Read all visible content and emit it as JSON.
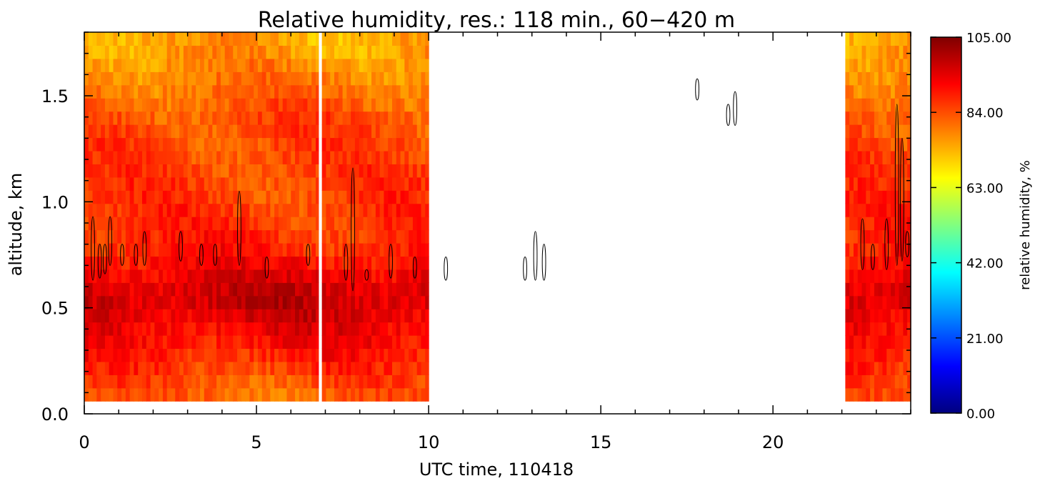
{
  "chart_data": {
    "type": "heatmap",
    "title": "Relative humidity, res.: 118 min.,  60−420 m",
    "xlabel": "UTC time, 110418",
    "ylabel": "altitude, km",
    "xlim": [
      0,
      24
    ],
    "ylim": [
      0.0,
      1.8
    ],
    "x_ticks": [
      0,
      5,
      10,
      15,
      20
    ],
    "x_tick_labels": [
      "0",
      "5",
      "10",
      "15",
      "20"
    ],
    "y_ticks": [
      0.0,
      0.5,
      1.0,
      1.5
    ],
    "y_tick_labels": [
      "0.0",
      "0.5",
      "1.0",
      "1.5"
    ],
    "grid": false,
    "data_altitude_range": [
      0.06,
      1.8
    ],
    "data_segments": [
      {
        "x_start": 0,
        "x_end": 6.8
      },
      {
        "x_start": 6.9,
        "x_end": 10.0
      },
      {
        "x_start": 22.1,
        "x_end": 24.0
      }
    ],
    "typical_values": [
      {
        "altitude_km": 1.75,
        "rh_percent": 75
      },
      {
        "altitude_km": 1.4,
        "rh_percent": 84
      },
      {
        "altitude_km": 1.0,
        "rh_percent": 86
      },
      {
        "altitude_km": 0.8,
        "rh_percent": 88
      },
      {
        "altitude_km": 0.55,
        "rh_percent": 98
      },
      {
        "altitude_km": 0.3,
        "rh_percent": 90
      },
      {
        "altitude_km": 0.1,
        "rh_percent": 82
      }
    ],
    "contour_level_approx_percent": 100,
    "colorbar": {
      "label": "relative humidity, %",
      "range": [
        0.0,
        105.0
      ],
      "tick_values": [
        0.0,
        21.0,
        42.0,
        63.0,
        84.0,
        105.0
      ],
      "tick_labels": [
        "0.00",
        "21.00",
        "42.00",
        "63.00",
        "84.00",
        "105.00"
      ],
      "colormap": [
        "#00007f",
        "#0000ff",
        "#0080ff",
        "#00ffff",
        "#80ff80",
        "#ffff00",
        "#ff8000",
        "#ff0000",
        "#7f0000"
      ]
    }
  }
}
